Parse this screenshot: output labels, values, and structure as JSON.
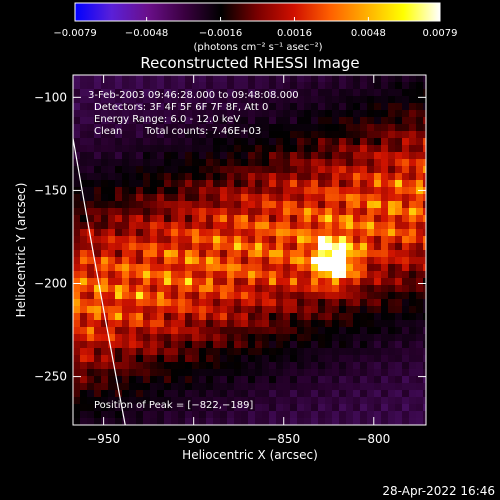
{
  "chart_data": {
    "type": "heatmap",
    "title": "Reconstructed RHESSI Image",
    "xlabel": "Heliocentric X (arcsec)",
    "ylabel": "Heliocentric Y (arcsec)",
    "xlim": [
      -967,
      -771
    ],
    "ylim": [
      -276,
      -88
    ],
    "x_ticks": [
      -950,
      -900,
      -850,
      -800
    ],
    "y_ticks": [
      -100,
      -150,
      -200,
      -250
    ],
    "x_tick_labels": [
      "−950",
      "−900",
      "−850",
      "−800"
    ],
    "y_tick_labels": [
      "−100",
      "−150",
      "−200",
      "−250"
    ],
    "colorbar": {
      "min": -0.0079,
      "max": 0.0079,
      "tick_values": [
        -0.0079,
        -0.0048,
        -0.0016,
        0.0016,
        0.0048,
        0.0079
      ],
      "tick_labels": [
        "−0.0079",
        "−0.0048",
        "−0.0016",
        "0.0016",
        "0.0048",
        "0.0079"
      ],
      "units_label": "(photons cm⁻² s⁻¹ asec⁻²)",
      "colormap": [
        "#0000ff",
        "#5a20d8",
        "#6a0f8a",
        "#3a0040",
        "#000000",
        "#7a0000",
        "#d01000",
        "#ff6000",
        "#ffb000",
        "#ffff00",
        "#ffffff"
      ]
    },
    "annotations": {
      "time": "3-Feb-2003 09:46:28.000 to 09:48:08.000",
      "detectors": "Detectors: 3F 4F 5F 6F 7F 8F, Att 0",
      "energy": "Energy Range: 6.0 - 12.0 keV",
      "method": "Clean",
      "counts": "Total counts: 7.46E+03",
      "peak": "Position of Peak = [−822,−189]"
    },
    "peak": {
      "x": -822,
      "y": -189
    },
    "limb_curve": [
      [
        -967,
        -122
      ],
      [
        -953,
        -200
      ],
      [
        -938,
        -276
      ]
    ],
    "footer": "28-Apr-2022 16:46"
  }
}
